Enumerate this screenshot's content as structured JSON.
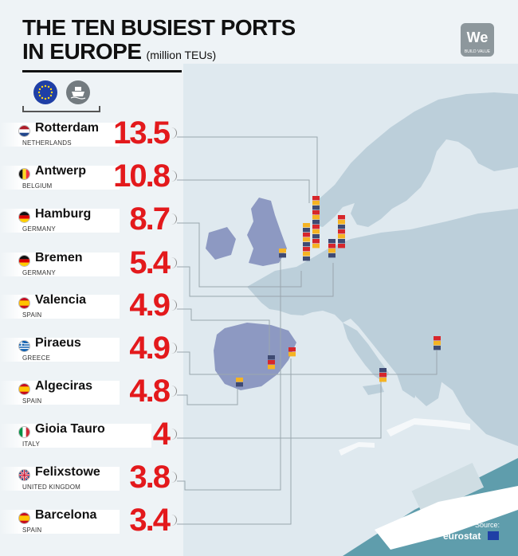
{
  "header": {
    "title_line1": "THE TEN BUSIEST PORTS",
    "title_line2": "IN EUROPE",
    "unit": "(million TEUs)"
  },
  "logo": {
    "text": "We",
    "tagline": "BUILD VALUE"
  },
  "icons": {
    "left": "eu-flag-icon",
    "right": "cargo-ship-icon"
  },
  "chart_data": {
    "type": "table",
    "title": "THE TEN BUSIEST PORTS IN EUROPE",
    "unit": "(million TEUs)",
    "ports": [
      {
        "name": "Rotterdam",
        "country": "NETHERLANDS",
        "value": 13.5,
        "display": "13.5"
      },
      {
        "name": "Antwerp",
        "country": "BELGIUM",
        "value": 10.8,
        "display": "10.8"
      },
      {
        "name": "Hamburg",
        "country": "GERMANY",
        "value": 8.7,
        "display": "8.7"
      },
      {
        "name": "Bremen",
        "country": "GERMANY",
        "value": 5.4,
        "display": "5.4"
      },
      {
        "name": "Valencia",
        "country": "SPAIN",
        "value": 4.9,
        "display": "4.9"
      },
      {
        "name": "Piraeus",
        "country": "GREECE",
        "value": 4.9,
        "display": "4.9"
      },
      {
        "name": "Algeciras",
        "country": "SPAIN",
        "value": 4.8,
        "display": "4.8"
      },
      {
        "name": "Gioia Tauro",
        "country": "ITALY",
        "value": 4,
        "display": "4"
      },
      {
        "name": "Felixstowe",
        "country": "UNITED KINGDOM",
        "value": 3.8,
        "display": "3.8"
      },
      {
        "name": "Barcelona",
        "country": "SPAIN",
        "value": 3.4,
        "display": "3.4"
      }
    ]
  },
  "colors": {
    "value_red": "#e3191c",
    "sea": "#dfe9ef",
    "land": "#bccfda",
    "land_highlight": "#8d99c2",
    "container_red": "#d7262b",
    "container_yellow": "#f5b323",
    "container_blue": "#3f4a73"
  },
  "source": {
    "label": "Source:",
    "name": "eurostat"
  }
}
